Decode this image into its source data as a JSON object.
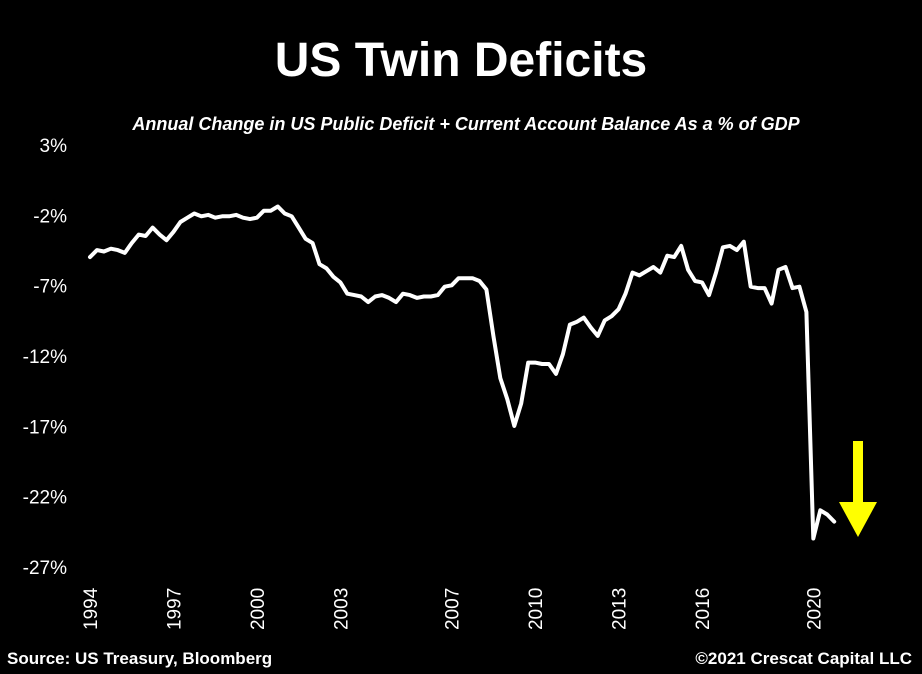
{
  "chart_data": {
    "type": "line",
    "title": "US Twin Deficits",
    "subtitle": "Annual Change in US Public Deficit + Current Account Balance As a % of GDP",
    "xlabel": "",
    "ylabel": "",
    "ylim": [
      -27,
      3
    ],
    "yticks": [
      3,
      -2,
      -7,
      -12,
      -17,
      -22,
      -27
    ],
    "ytick_labels": [
      "3%",
      "-2%",
      "-7%",
      "-12%",
      "-17%",
      "-22%",
      "-27%"
    ],
    "xlim": [
      1994,
      2022.9
    ],
    "xticks": [
      1994,
      1997,
      2000,
      2003,
      2007,
      2010,
      2013,
      2016,
      2020
    ],
    "xtick_labels": [
      "1994",
      "1997",
      "2000",
      "2003",
      "2007",
      "2010",
      "2013",
      "2016",
      "2020"
    ],
    "grid": false,
    "legend": "none",
    "series": [
      {
        "name": "US Public Deficit + Current Account Balance (% of GDP)",
        "color": "#ffffff",
        "x": [
          1994.0,
          1994.25,
          1994.5,
          1994.75,
          1995.0,
          1995.25,
          1995.5,
          1995.75,
          1996.0,
          1996.25,
          1996.5,
          1996.75,
          1997.0,
          1997.25,
          1997.5,
          1997.75,
          1998.0,
          1998.25,
          1998.5,
          1998.75,
          1999.0,
          1999.25,
          1999.5,
          1999.75,
          2000.0,
          2000.25,
          2000.5,
          2000.75,
          2001.0,
          2001.25,
          2001.5,
          2001.75,
          2002.0,
          2002.25,
          2002.5,
          2002.75,
          2003.0,
          2003.25,
          2003.5,
          2003.75,
          2004.0,
          2004.25,
          2004.5,
          2004.75,
          2005.0,
          2005.25,
          2005.5,
          2005.75,
          2006.0,
          2006.25,
          2006.5,
          2006.75,
          2007.0,
          2007.25,
          2007.5,
          2007.75,
          2008.0,
          2008.25,
          2008.5,
          2008.75,
          2009.0,
          2009.25,
          2009.5,
          2009.75,
          2010.0,
          2010.25,
          2010.5,
          2010.75,
          2011.0,
          2011.25,
          2011.5,
          2011.75,
          2012.0,
          2012.25,
          2012.5,
          2012.75,
          2013.0,
          2013.25,
          2013.5,
          2013.75,
          2014.0,
          2014.25,
          2014.5,
          2014.75,
          2015.0,
          2015.25,
          2015.5,
          2015.75,
          2016.0,
          2016.25,
          2016.5,
          2016.75,
          2017.0,
          2017.25,
          2017.5,
          2017.75,
          2018.0,
          2018.25,
          2018.5,
          2018.75,
          2019.0,
          2019.25,
          2019.5,
          2019.75,
          2020.0,
          2020.25,
          2020.5,
          2020.75
        ],
        "values": [
          -4.9,
          -4.4,
          -4.5,
          -4.3,
          -4.4,
          -4.6,
          -3.9,
          -3.3,
          -3.4,
          -2.8,
          -3.3,
          -3.7,
          -3.1,
          -2.4,
          -2.1,
          -1.8,
          -2.0,
          -1.9,
          -2.1,
          -2.0,
          -2.0,
          -1.9,
          -2.1,
          -2.2,
          -2.1,
          -1.6,
          -1.6,
          -1.3,
          -1.8,
          -2.0,
          -2.8,
          -3.6,
          -3.9,
          -5.4,
          -5.7,
          -6.3,
          -6.7,
          -7.5,
          -7.6,
          -7.7,
          -8.1,
          -7.7,
          -7.6,
          -7.8,
          -8.1,
          -7.5,
          -7.6,
          -7.8,
          -7.7,
          -7.7,
          -7.6,
          -7.0,
          -6.9,
          -6.4,
          -6.4,
          -6.4,
          -6.6,
          -7.2,
          -10.5,
          -13.5,
          -15.0,
          -16.9,
          -15.3,
          -12.4,
          -12.4,
          -12.5,
          -12.5,
          -13.2,
          -11.8,
          -9.7,
          -9.5,
          -9.2,
          -9.9,
          -10.5,
          -9.4,
          -9.1,
          -8.6,
          -7.5,
          -6.0,
          -6.2,
          -5.9,
          -5.6,
          -6.0,
          -4.8,
          -4.9,
          -4.1,
          -5.8,
          -6.6,
          -6.7,
          -7.6,
          -6.0,
          -4.2,
          -4.1,
          -4.4,
          -3.8,
          -7.0,
          -7.1,
          -7.1,
          -8.2,
          -5.8,
          -5.6,
          -7.1,
          -7.0,
          -8.8,
          -24.9,
          -22.9,
          -23.2,
          -23.7
        ]
      }
    ],
    "annotations": [
      {
        "type": "arrow",
        "direction": "down",
        "color": "#ffff00",
        "meaning": "further decline expected"
      }
    ]
  },
  "footer": {
    "source": "Source: US Treasury, Bloomberg",
    "copyright": "©2021 Crescat Capital LLC"
  },
  "colors": {
    "background": "#000000",
    "text": "#ffffff",
    "line": "#ffffff",
    "arrow": "#ffff00"
  }
}
